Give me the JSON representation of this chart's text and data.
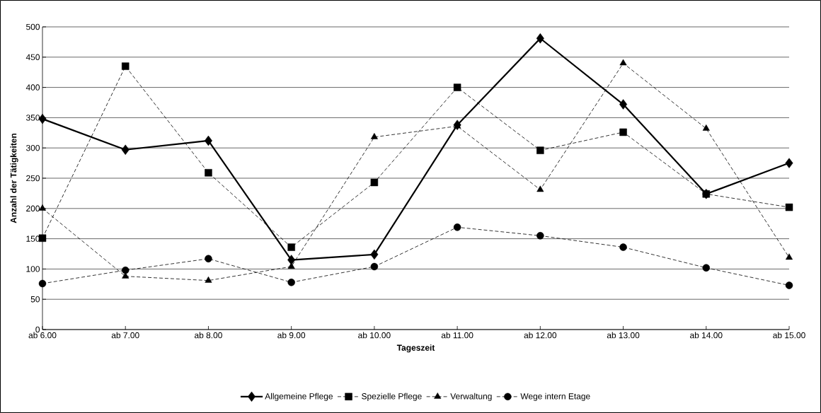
{
  "chart_data": {
    "type": "line",
    "xlabel": "Tageszeit",
    "ylabel": "Anzahl der Tätigkeiten",
    "categories": [
      "ab 6.00",
      "ab 7.00",
      "ab 8.00",
      "ab 9.00",
      "ab 10.00",
      "ab 11.00",
      "ab 12.00",
      "ab 13.00",
      "ab 14.00",
      "ab 15.00"
    ],
    "series": [
      {
        "name": "Allgemeine Pflege",
        "color": "#000000",
        "marker": "diamond",
        "line_style": "solid",
        "values": [
          348,
          297,
          312,
          115,
          124,
          338,
          481,
          372,
          224,
          275
        ]
      },
      {
        "name": "Spezielle Pflege",
        "color": "#000000",
        "marker": "square",
        "line_style": "dashed",
        "values": [
          151,
          435,
          259,
          136,
          243,
          400,
          296,
          326,
          224,
          202
        ]
      },
      {
        "name": "Verwaltung",
        "color": "#000000",
        "marker": "triangle",
        "line_style": "dashed",
        "values": [
          200,
          88,
          81,
          104,
          318,
          336,
          231,
          440,
          332,
          119
        ]
      },
      {
        "name": "Wege intern Etage",
        "color": "#000000",
        "marker": "circle",
        "line_style": "dashed",
        "values": [
          76,
          98,
          117,
          78,
          104,
          169,
          155,
          136,
          102,
          73
        ]
      }
    ],
    "ylim": [
      0,
      500
    ],
    "yticks": [
      0,
      50,
      100,
      150,
      200,
      250,
      300,
      350,
      400,
      450,
      500
    ],
    "grid": "y",
    "legend": "bottom"
  }
}
